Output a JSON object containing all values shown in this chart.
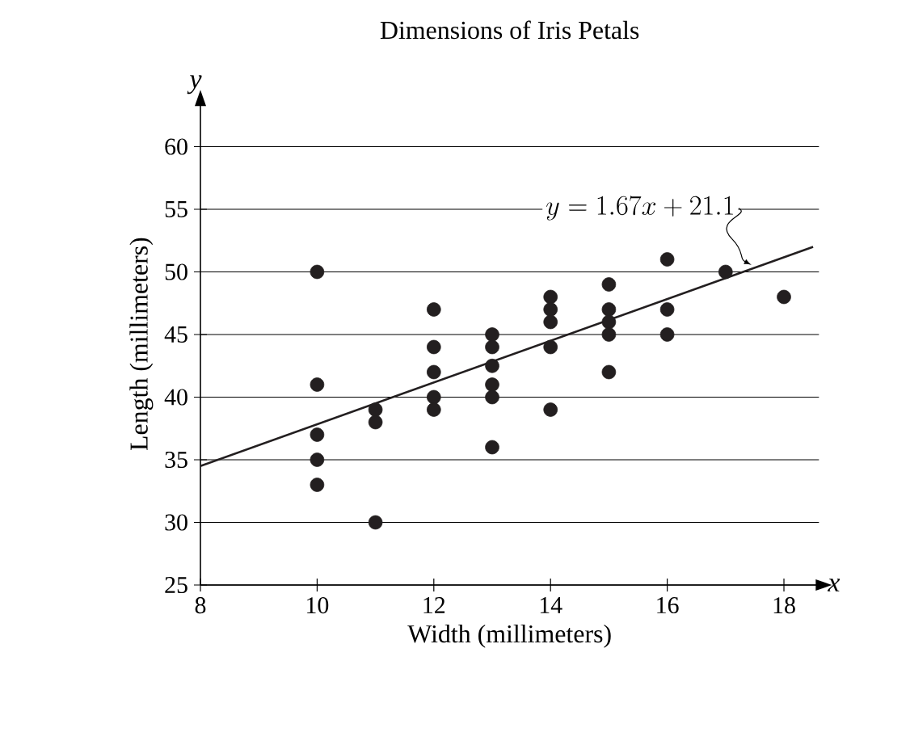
{
  "chart_data": {
    "type": "scatter",
    "title": "Dimensions of Iris Petals",
    "xlabel": "Width (millimeters)",
    "ylabel": "Length (millimeters)",
    "series": [
      {
        "color": "#231f20",
        "marker": "circle",
        "x": [
          10,
          10,
          10,
          10,
          10,
          11,
          11,
          11,
          12,
          12,
          12,
          12,
          12,
          13,
          13,
          13,
          13,
          13,
          13,
          14,
          14,
          14,
          14,
          14,
          15,
          15,
          15,
          15,
          15,
          16,
          16,
          16,
          17,
          18
        ],
        "values": [
          50,
          41,
          37,
          35,
          33,
          39,
          38,
          30,
          47,
          44,
          42,
          40,
          39,
          45,
          44,
          42.5,
          41,
          40,
          36,
          48,
          47,
          46,
          44,
          39,
          49,
          47,
          46,
          45,
          42,
          51,
          47,
          45,
          50,
          48
        ]
      },
      {
        "type": "line",
        "color": "#231f20",
        "marker": "none",
        "line_style": "solid",
        "x": [
          8,
          18.5
        ],
        "values": [
          34.5,
          52.0
        ]
      }
    ],
    "annotations": [
      {
        "text": "y = 1.67x + 21.1",
        "x": 17.5,
        "y": 50.3
      },
      "x",
      "y"
    ],
    "xlim": [
      8,
      18.6
    ],
    "ylim": [
      25,
      63.5
    ],
    "xticks": [
      8,
      10,
      12,
      14,
      16,
      18
    ],
    "yticks": [
      25,
      30,
      35,
      40,
      45,
      50,
      55,
      60
    ],
    "grid": "y"
  }
}
